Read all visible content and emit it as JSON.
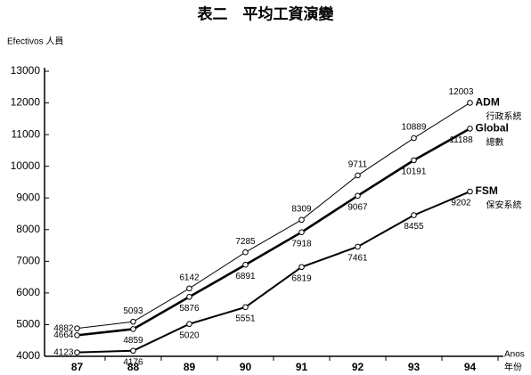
{
  "chart_data": {
    "type": "line",
    "title": "表二　平均工資演變",
    "y_label": "Efectivos 人員",
    "x_label": "Anos",
    "x_label_zh": "年份",
    "categories": [
      "87",
      "88",
      "89",
      "90",
      "91",
      "92",
      "93",
      "94"
    ],
    "series": [
      {
        "name": "ADM",
        "label_zh": "行政系統",
        "color": "#000000",
        "values": [
          4882,
          5093,
          6142,
          7285,
          8309,
          9711,
          10889,
          12003
        ]
      },
      {
        "name": "Global",
        "label_zh": "總數",
        "color": "#000000",
        "values": [
          4664,
          4859,
          5876,
          6891,
          7918,
          9067,
          10191,
          11188
        ]
      },
      {
        "name": "FSM",
        "label_zh": "保安系統",
        "color": "#000000",
        "values": [
          4123,
          4176,
          5020,
          5551,
          6819,
          7461,
          8455,
          9202
        ]
      }
    ],
    "ylim": [
      4000,
      13000
    ],
    "yticks": [
      4000,
      5000,
      6000,
      7000,
      8000,
      9000,
      10000,
      11000,
      12000,
      13000
    ],
    "grid": false
  }
}
